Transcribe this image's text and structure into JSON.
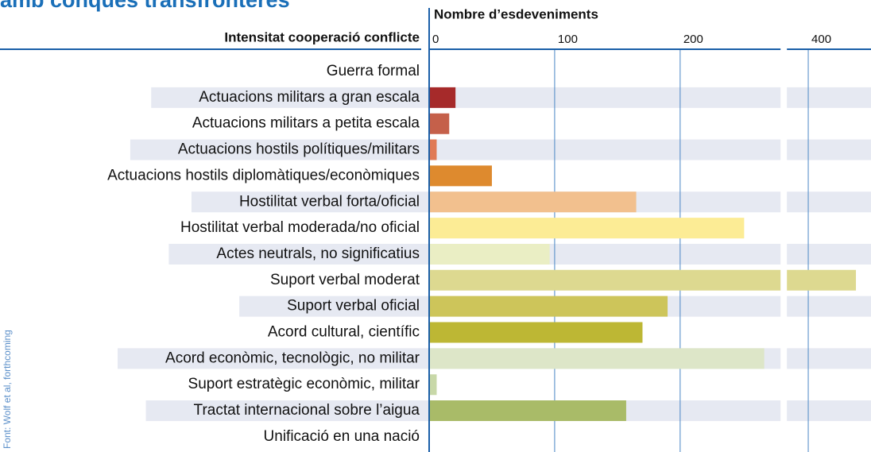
{
  "chart_data": {
    "type": "barh",
    "title": "amb conques transfronteres",
    "ylabel": "Intensitat cooperació conflicte",
    "xlabel": "Nombre d’esdeveniments",
    "source": "Font: Wolf et al, forthcoming",
    "categories": [
      "Guerra formal",
      "Actuacions militars a gran escala",
      "Actuacions militars a petita escala",
      "Actuacions hostils polítiques/militars",
      "Actuacions hostils diplomàtiques/econòmiques",
      "Hostilitat verbal forta/oficial",
      "Hostilitat verbal moderada/no oficial",
      "Actes neutrals, no significatius",
      "Suport verbal moderat",
      "Suport verbal oficial",
      "Acord cultural, científic",
      "Acord econòmic, tecnològic, no militar",
      "Suport estratègic econòmic, militar",
      "Tractat internacional sobre l’aigua",
      "Unificació en una nació"
    ],
    "values": [
      0,
      21,
      16,
      6,
      50,
      165,
      251,
      96,
      438,
      190,
      170,
      267,
      6,
      157,
      0
    ],
    "colors": [
      "#a62a2a",
      "#a62a2a",
      "#c5604a",
      "#e07a55",
      "#de8a2e",
      "#f2c08e",
      "#fcec95",
      "#eaeec4",
      "#ddd990",
      "#cdc55a",
      "#bdb734",
      "#dde6c8",
      "#c8d8a8",
      "#a9bb68",
      "#a9bb68"
    ],
    "xlim": [
      0,
      450
    ],
    "axis_break": [
      280,
      383
    ],
    "xticks": [
      0,
      100,
      200,
      400
    ],
    "grid": true
  }
}
